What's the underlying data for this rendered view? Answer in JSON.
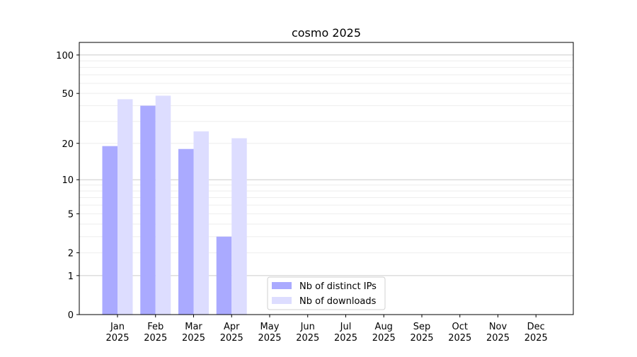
{
  "chart_data": {
    "type": "bar",
    "title": "cosmo 2025",
    "xlabel": "",
    "ylabel": "",
    "yscale": "log10(1+y)",
    "ylim": [
      0,
      120
    ],
    "yticks": [
      0,
      1,
      2,
      5,
      10,
      20,
      50,
      100
    ],
    "grid": true,
    "legend_position": "lower-center",
    "categories": [
      "Jan\n2025",
      "Feb\n2025",
      "Mar\n2025",
      "Apr\n2025",
      "May\n2025",
      "Jun\n2025",
      "Jul\n2025",
      "Aug\n2025",
      "Sep\n2025",
      "Oct\n2025",
      "Nov\n2025",
      "Dec\n2025"
    ],
    "series": [
      {
        "name": "Nb of distinct IPs",
        "color": "#aaaaff",
        "values": [
          19,
          40,
          18,
          3,
          0,
          0,
          0,
          0,
          0,
          0,
          0,
          0
        ]
      },
      {
        "name": "Nb of downloads",
        "color": "#ddddff",
        "values": [
          45,
          48,
          25,
          22,
          0,
          0,
          0,
          0,
          0,
          0,
          0,
          0
        ]
      }
    ]
  }
}
